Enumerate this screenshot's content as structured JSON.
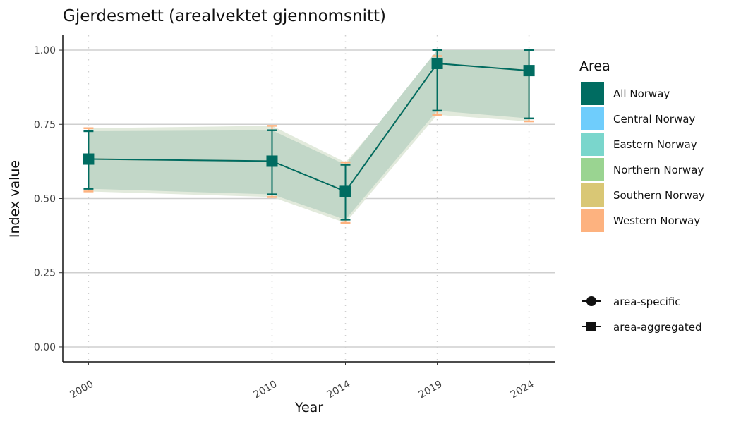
{
  "chart_data": {
    "type": "line",
    "title": "Gjerdesmett (arealvektet gjennomsnitt)",
    "xlabel": "Year",
    "ylabel": "Index value",
    "x": [
      2000,
      2010,
      2014,
      2019,
      2024
    ],
    "x_tick_labels": [
      "2000",
      "2010",
      "2014",
      "2019",
      "2024"
    ],
    "xlim": [
      1998.6,
      2025.4
    ],
    "ylim": [
      -0.05,
      1.05
    ],
    "y_ticks": [
      0,
      0.25,
      0.5,
      0.75,
      1.0
    ],
    "y_tick_labels": [
      "0.00",
      "0.25",
      "0.50",
      "0.75",
      "1.00"
    ],
    "grid": "horizontal major, vertical dotted at years",
    "series": [
      {
        "name": "Western Norway",
        "kind": "area-specific",
        "color": "#FDB27F",
        "values": [
          0.633,
          0.626,
          0.524,
          0.955,
          0.931
        ],
        "lower": [
          0.524,
          0.505,
          0.418,
          0.782,
          0.76
        ],
        "upper": [
          0.737,
          0.745,
          0.622,
          0.98,
          1.0
        ]
      },
      {
        "name": "All Norway",
        "kind": "area-aggregated",
        "color": "#006C61",
        "values": [
          0.633,
          0.626,
          0.524,
          0.955,
          0.931
        ],
        "lower": [
          0.533,
          0.514,
          0.429,
          0.796,
          0.77
        ],
        "upper": [
          0.727,
          0.73,
          0.614,
          1.0,
          1.0
        ]
      }
    ],
    "legend": {
      "title": "Area",
      "placement": "right",
      "items": [
        {
          "label": "All Norway",
          "color": "#006C61"
        },
        {
          "label": "Central Norway",
          "color": "#6FCDFC"
        },
        {
          "label": "Eastern Norway",
          "color": "#7AD6CC"
        },
        {
          "label": "Northern Norway",
          "color": "#9AD491"
        },
        {
          "label": "Southern Norway",
          "color": "#D9C775"
        },
        {
          "label": "Western Norway",
          "color": "#FDB27F"
        }
      ],
      "shape_items": [
        {
          "label": "area-specific",
          "shape": "circle"
        },
        {
          "label": "area-aggregated",
          "shape": "square"
        }
      ]
    }
  }
}
